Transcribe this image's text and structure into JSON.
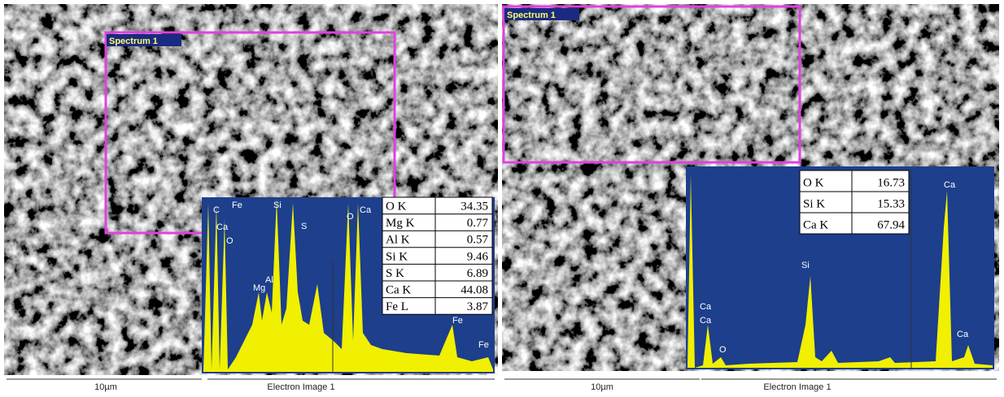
{
  "panels": [
    {
      "spectrum_label": "Spectrum 1",
      "scale_bar": "10µm",
      "caption": "Electron Image 1",
      "table": {
        "rows": [
          [
            "O K",
            "34.35"
          ],
          [
            "Mg K",
            "0.77"
          ],
          [
            "Al K",
            "0.57"
          ],
          [
            "Si K",
            "9.46"
          ],
          [
            "S K",
            "6.89"
          ],
          [
            "Ca K",
            "44.08"
          ],
          [
            "Fe L",
            "3.87"
          ]
        ]
      },
      "peak_labels": [
        "C",
        "Ca",
        "Fe",
        "O",
        "Mg",
        "Al",
        "Si",
        "S",
        "O",
        "Ca",
        "Fe",
        "Fe"
      ]
    },
    {
      "spectrum_label": "Spectrum 1",
      "scale_bar": "10µm",
      "caption": "Electron Image 1",
      "table": {
        "rows": [
          [
            "O K",
            "16.73"
          ],
          [
            "Si K",
            "15.33"
          ],
          [
            "Ca K",
            "67.94"
          ]
        ]
      },
      "peak_labels": [
        "Ca",
        "Ca",
        "O",
        "Si",
        "Ca",
        "Ca"
      ]
    }
  ]
}
